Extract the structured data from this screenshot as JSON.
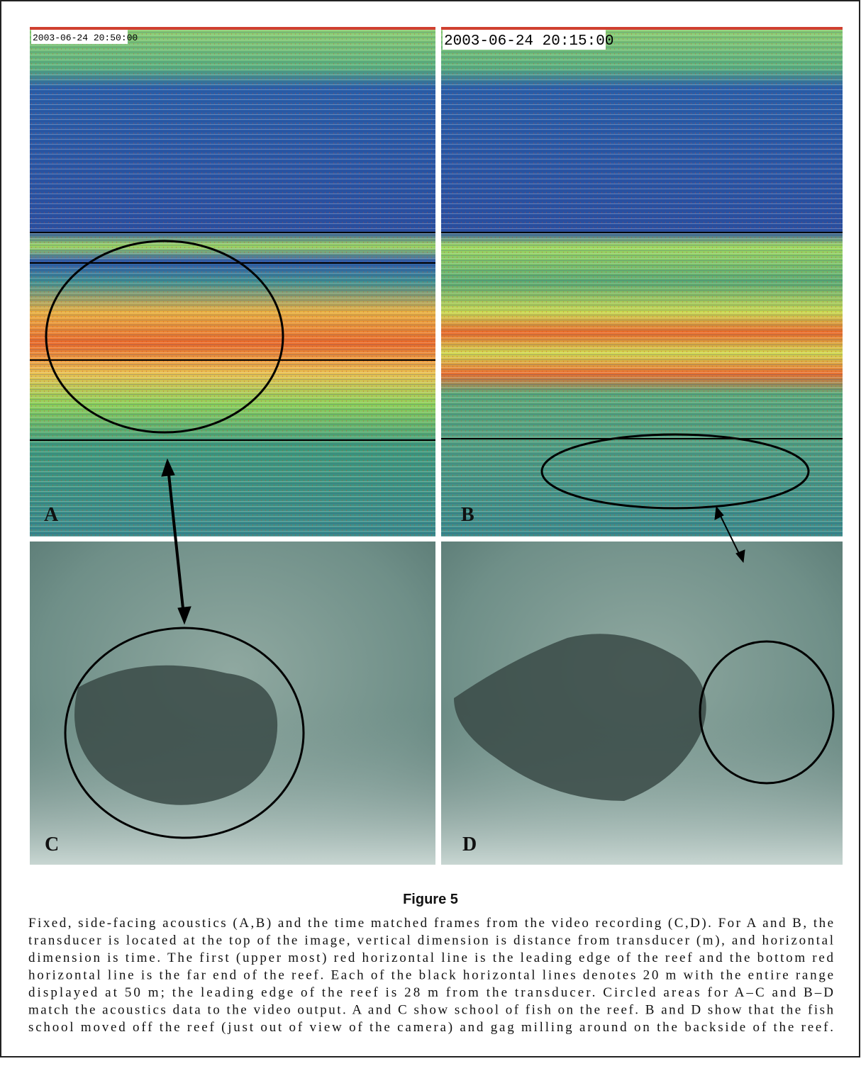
{
  "panels": [
    {
      "label": "A",
      "timestamp": "2003-06-24 20:50:00"
    },
    {
      "label": "B",
      "timestamp": "2003-06-24 20:15:00"
    },
    {
      "label": "C"
    },
    {
      "label": "D"
    }
  ],
  "figure": {
    "title": "Figure 5",
    "caption_lines": [
      "Fixed, side-facing acoustics (A,B) and the time matched frames from the video recording (C,D). For A and B, the",
      "transducer is located at the top of the image, vertical dimension is distance from transducer (m), and horizontal",
      "dimension is time. The first (upper most) red horizontal line is the leading edge of the reef and the bottom red",
      "horizontal line is the far end of the reef. Each of the black horizontal lines denotes 20 m with the entire range",
      "displayed at 50 m; the leading edge of the reef is 28 m from the transducer. Circled areas for A–C and B–D",
      "match the acoustics data to the video output. A and C show school of fish on the reef. B and D show that the fish",
      "school moved off the reef (just out of view of the camera) and gag milling around on the backside of the reef."
    ]
  }
}
